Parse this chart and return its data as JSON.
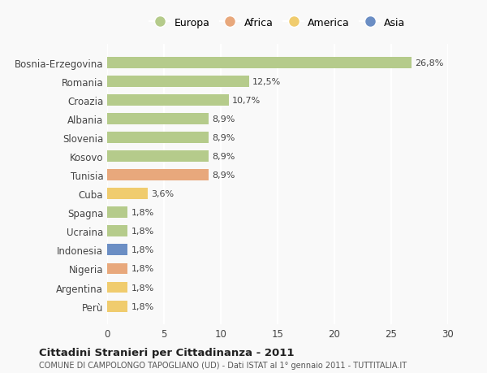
{
  "categories": [
    "Bosnia-Erzegovina",
    "Romania",
    "Croazia",
    "Albania",
    "Slovenia",
    "Kosovo",
    "Tunisia",
    "Cuba",
    "Spagna",
    "Ucraina",
    "Indonesia",
    "Nigeria",
    "Argentina",
    "Perù"
  ],
  "values": [
    26.8,
    12.5,
    10.7,
    8.9,
    8.9,
    8.9,
    8.9,
    3.6,
    1.8,
    1.8,
    1.8,
    1.8,
    1.8,
    1.8
  ],
  "labels": [
    "26,8%",
    "12,5%",
    "10,7%",
    "8,9%",
    "8,9%",
    "8,9%",
    "8,9%",
    "3,6%",
    "1,8%",
    "1,8%",
    "1,8%",
    "1,8%",
    "1,8%",
    "1,8%"
  ],
  "continents": [
    "Europa",
    "Europa",
    "Europa",
    "Europa",
    "Europa",
    "Europa",
    "Africa",
    "America",
    "Europa",
    "Europa",
    "Asia",
    "Africa",
    "America",
    "America"
  ],
  "continent_colors": {
    "Europa": "#b5cb8b",
    "Africa": "#e8a87c",
    "America": "#f0cc6e",
    "Asia": "#6b8ec4"
  },
  "legend_items": [
    "Europa",
    "Africa",
    "America",
    "Asia"
  ],
  "xlim": [
    0,
    30
  ],
  "xticks": [
    0,
    5,
    10,
    15,
    20,
    25,
    30
  ],
  "title": "Cittadini Stranieri per Cittadinanza - 2011",
  "subtitle": "COMUNE DI CAMPOLONGO TAPOGLIANO (UD) - Dati ISTAT al 1° gennaio 2011 - TUTTITALIA.IT",
  "bg_color": "#f9f9f9",
  "grid_color": "#ffffff",
  "bar_height": 0.6
}
